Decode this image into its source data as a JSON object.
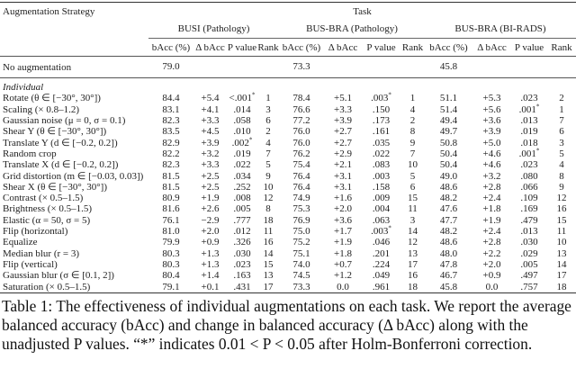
{
  "table": {
    "header": {
      "strategy": "Augmentation Strategy",
      "task": "Task",
      "groups": [
        "BUSI (Pathology)",
        "BUS-BRA (Pathology)",
        "BUS-BRA (BI-RADS)"
      ],
      "columns": [
        "bAcc (%)",
        "Δ bAcc",
        "P value",
        "Rank"
      ]
    },
    "baseline": {
      "name": "No augmentation",
      "values": [
        "79.0",
        "73.3",
        "45.8"
      ]
    },
    "section": "Individual",
    "rows": [
      {
        "name": "Rotate (θ ∈ [−30°, 30°])",
        "cells": [
          [
            "84.4",
            "+5.4",
            "<.001",
            "1",
            true
          ],
          [
            "78.4",
            "+5.1",
            ".003",
            "1",
            true
          ],
          [
            "51.1",
            "+5.3",
            ".023",
            "2",
            false
          ]
        ]
      },
      {
        "name": "Scaling (× 0.8–1.2)",
        "cells": [
          [
            "83.1",
            "+4.1",
            ".014",
            "3",
            false
          ],
          [
            "76.6",
            "+3.3",
            ".150",
            "4",
            false
          ],
          [
            "51.4",
            "+5.6",
            ".001",
            "1",
            true
          ]
        ]
      },
      {
        "name": "Gaussian noise (μ = 0, σ = 0.1)",
        "cells": [
          [
            "82.3",
            "+3.3",
            ".058",
            "6",
            false
          ],
          [
            "77.2",
            "+3.9",
            ".173",
            "2",
            false
          ],
          [
            "49.4",
            "+3.6",
            ".013",
            "7",
            false
          ]
        ]
      },
      {
        "name": "Shear Y (θ ∈ [−30°, 30°])",
        "cells": [
          [
            "83.5",
            "+4.5",
            ".010",
            "2",
            false
          ],
          [
            "76.0",
            "+2.7",
            ".161",
            "8",
            false
          ],
          [
            "49.7",
            "+3.9",
            ".019",
            "6",
            false
          ]
        ]
      },
      {
        "name": "Translate Y (d ∈ [−0.2, 0.2])",
        "cells": [
          [
            "82.9",
            "+3.9",
            ".002",
            "4",
            true
          ],
          [
            "76.0",
            "+2.7",
            ".035",
            "9",
            false
          ],
          [
            "50.8",
            "+5.0",
            ".018",
            "3",
            false
          ]
        ]
      },
      {
        "name": "Random crop",
        "cells": [
          [
            "82.2",
            "+3.2",
            ".019",
            "7",
            false
          ],
          [
            "76.2",
            "+2.9",
            ".022",
            "7",
            false
          ],
          [
            "50.4",
            "+4.6",
            ".001",
            "5",
            true
          ]
        ]
      },
      {
        "name": "Translate X (d ∈ [−0.2, 0.2])",
        "cells": [
          [
            "82.3",
            "+3.3",
            ".022",
            "5",
            false
          ],
          [
            "75.4",
            "+2.1",
            ".083",
            "10",
            false
          ],
          [
            "50.4",
            "+4.6",
            ".023",
            "4",
            false
          ]
        ]
      },
      {
        "name": "Grid distortion (m ∈ [−0.03, 0.03])",
        "cells": [
          [
            "81.5",
            "+2.5",
            ".034",
            "9",
            false
          ],
          [
            "76.4",
            "+3.1",
            ".003",
            "5",
            false
          ],
          [
            "49.0",
            "+3.2",
            ".080",
            "8",
            false
          ]
        ]
      },
      {
        "name": "Shear X (θ ∈ [−30°, 30°])",
        "cells": [
          [
            "81.5",
            "+2.5",
            ".252",
            "10",
            false
          ],
          [
            "76.4",
            "+3.1",
            ".158",
            "6",
            false
          ],
          [
            "48.6",
            "+2.8",
            ".066",
            "9",
            false
          ]
        ]
      },
      {
        "name": "Contrast (× 0.5–1.5)",
        "cells": [
          [
            "80.9",
            "+1.9",
            ".008",
            "12",
            false
          ],
          [
            "74.9",
            "+1.6",
            ".009",
            "15",
            false
          ],
          [
            "48.2",
            "+2.4",
            ".109",
            "12",
            false
          ]
        ]
      },
      {
        "name": "Brightness (× 0.5–1.5)",
        "cells": [
          [
            "81.6",
            "+2.6",
            ".005",
            "8",
            false
          ],
          [
            "75.3",
            "+2.0",
            ".004",
            "11",
            false
          ],
          [
            "47.6",
            "+1.8",
            ".169",
            "16",
            false
          ]
        ]
      },
      {
        "name": "Elastic (α = 50, σ = 5)",
        "cells": [
          [
            "76.1",
            "−2.9",
            ".777",
            "18",
            false
          ],
          [
            "76.9",
            "+3.6",
            ".063",
            "3",
            false
          ],
          [
            "47.7",
            "+1.9",
            ".479",
            "15",
            false
          ]
        ]
      },
      {
        "name": "Flip (horizontal)",
        "cells": [
          [
            "81.0",
            "+2.0",
            ".012",
            "11",
            false
          ],
          [
            "75.0",
            "+1.7",
            ".003",
            "14",
            true
          ],
          [
            "48.2",
            "+2.4",
            ".013",
            "11",
            false
          ]
        ]
      },
      {
        "name": "Equalize",
        "cells": [
          [
            "79.9",
            "+0.9",
            ".326",
            "16",
            false
          ],
          [
            "75.2",
            "+1.9",
            ".046",
            "12",
            false
          ],
          [
            "48.6",
            "+2.8",
            ".030",
            "10",
            false
          ]
        ]
      },
      {
        "name": "Median blur (r = 3)",
        "cells": [
          [
            "80.3",
            "+1.3",
            ".030",
            "14",
            false
          ],
          [
            "75.1",
            "+1.8",
            ".201",
            "13",
            false
          ],
          [
            "48.0",
            "+2.2",
            ".029",
            "13",
            false
          ]
        ]
      },
      {
        "name": "Flip (vertical)",
        "cells": [
          [
            "80.3",
            "+1.3",
            ".023",
            "15",
            false
          ],
          [
            "74.0",
            "+0.7",
            ".224",
            "17",
            false
          ],
          [
            "47.8",
            "+2.0",
            ".005",
            "14",
            false
          ]
        ]
      },
      {
        "name": "Gaussian blur (σ ∈ [0.1, 2])",
        "cells": [
          [
            "80.4",
            "+1.4",
            ".163",
            "13",
            false
          ],
          [
            "74.5",
            "+1.2",
            ".049",
            "16",
            false
          ],
          [
            "46.7",
            "+0.9",
            ".497",
            "17",
            false
          ]
        ]
      },
      {
        "name": "Saturation (× 0.5–1.5)",
        "cells": [
          [
            "79.1",
            "+0.1",
            ".431",
            "17",
            false
          ],
          [
            "73.3",
            "0.0",
            ".961",
            "18",
            false
          ],
          [
            "45.8",
            "0.0",
            ".757",
            "18",
            false
          ]
        ]
      }
    ],
    "significance_mark": "*"
  },
  "caption": "Table 1: The effectiveness of individual augmentations on each task. We report the average balanced accuracy (bAcc) and change in balanced accuracy (Δ bAcc) along with the unadjusted P values. “*” indicates 0.01 < P < 0.05 after Holm-Bonferroni correction."
}
